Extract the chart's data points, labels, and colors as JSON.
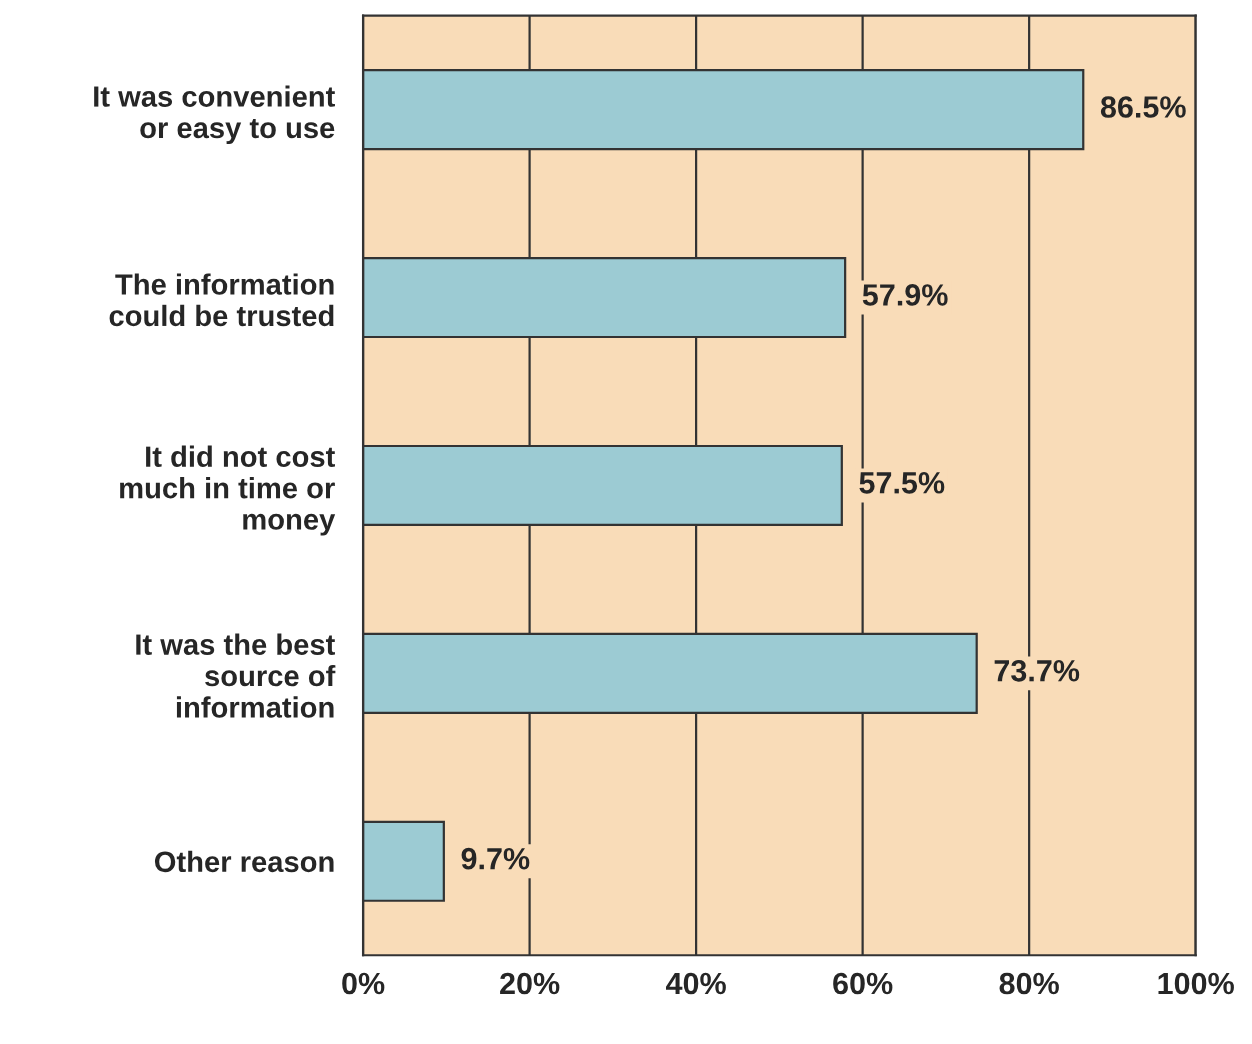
{
  "chart_data": {
    "type": "bar",
    "orientation": "horizontal",
    "categories": [
      "It was convenient\nor easy to use",
      "The information\ncould be trusted",
      "It did not cost\nmuch in time or\nmoney",
      "It was the best\nsource of\ninformation",
      "Other reason"
    ],
    "values": [
      86.5,
      57.9,
      57.5,
      73.7,
      9.7
    ],
    "value_labels": [
      "86.5%",
      "57.9%",
      "57.5%",
      "73.7%",
      "9.7%"
    ],
    "color": "#9ccbd3",
    "xlim": [
      0,
      100
    ],
    "xticks": [
      {
        "value": 0,
        "label": "0%"
      },
      {
        "value": 20,
        "label": "20%"
      },
      {
        "value": 40,
        "label": "40%"
      },
      {
        "value": 60,
        "label": "60%"
      },
      {
        "value": 80,
        "label": "80%"
      },
      {
        "value": 100,
        "label": "100%"
      }
    ],
    "grid": "x"
  }
}
